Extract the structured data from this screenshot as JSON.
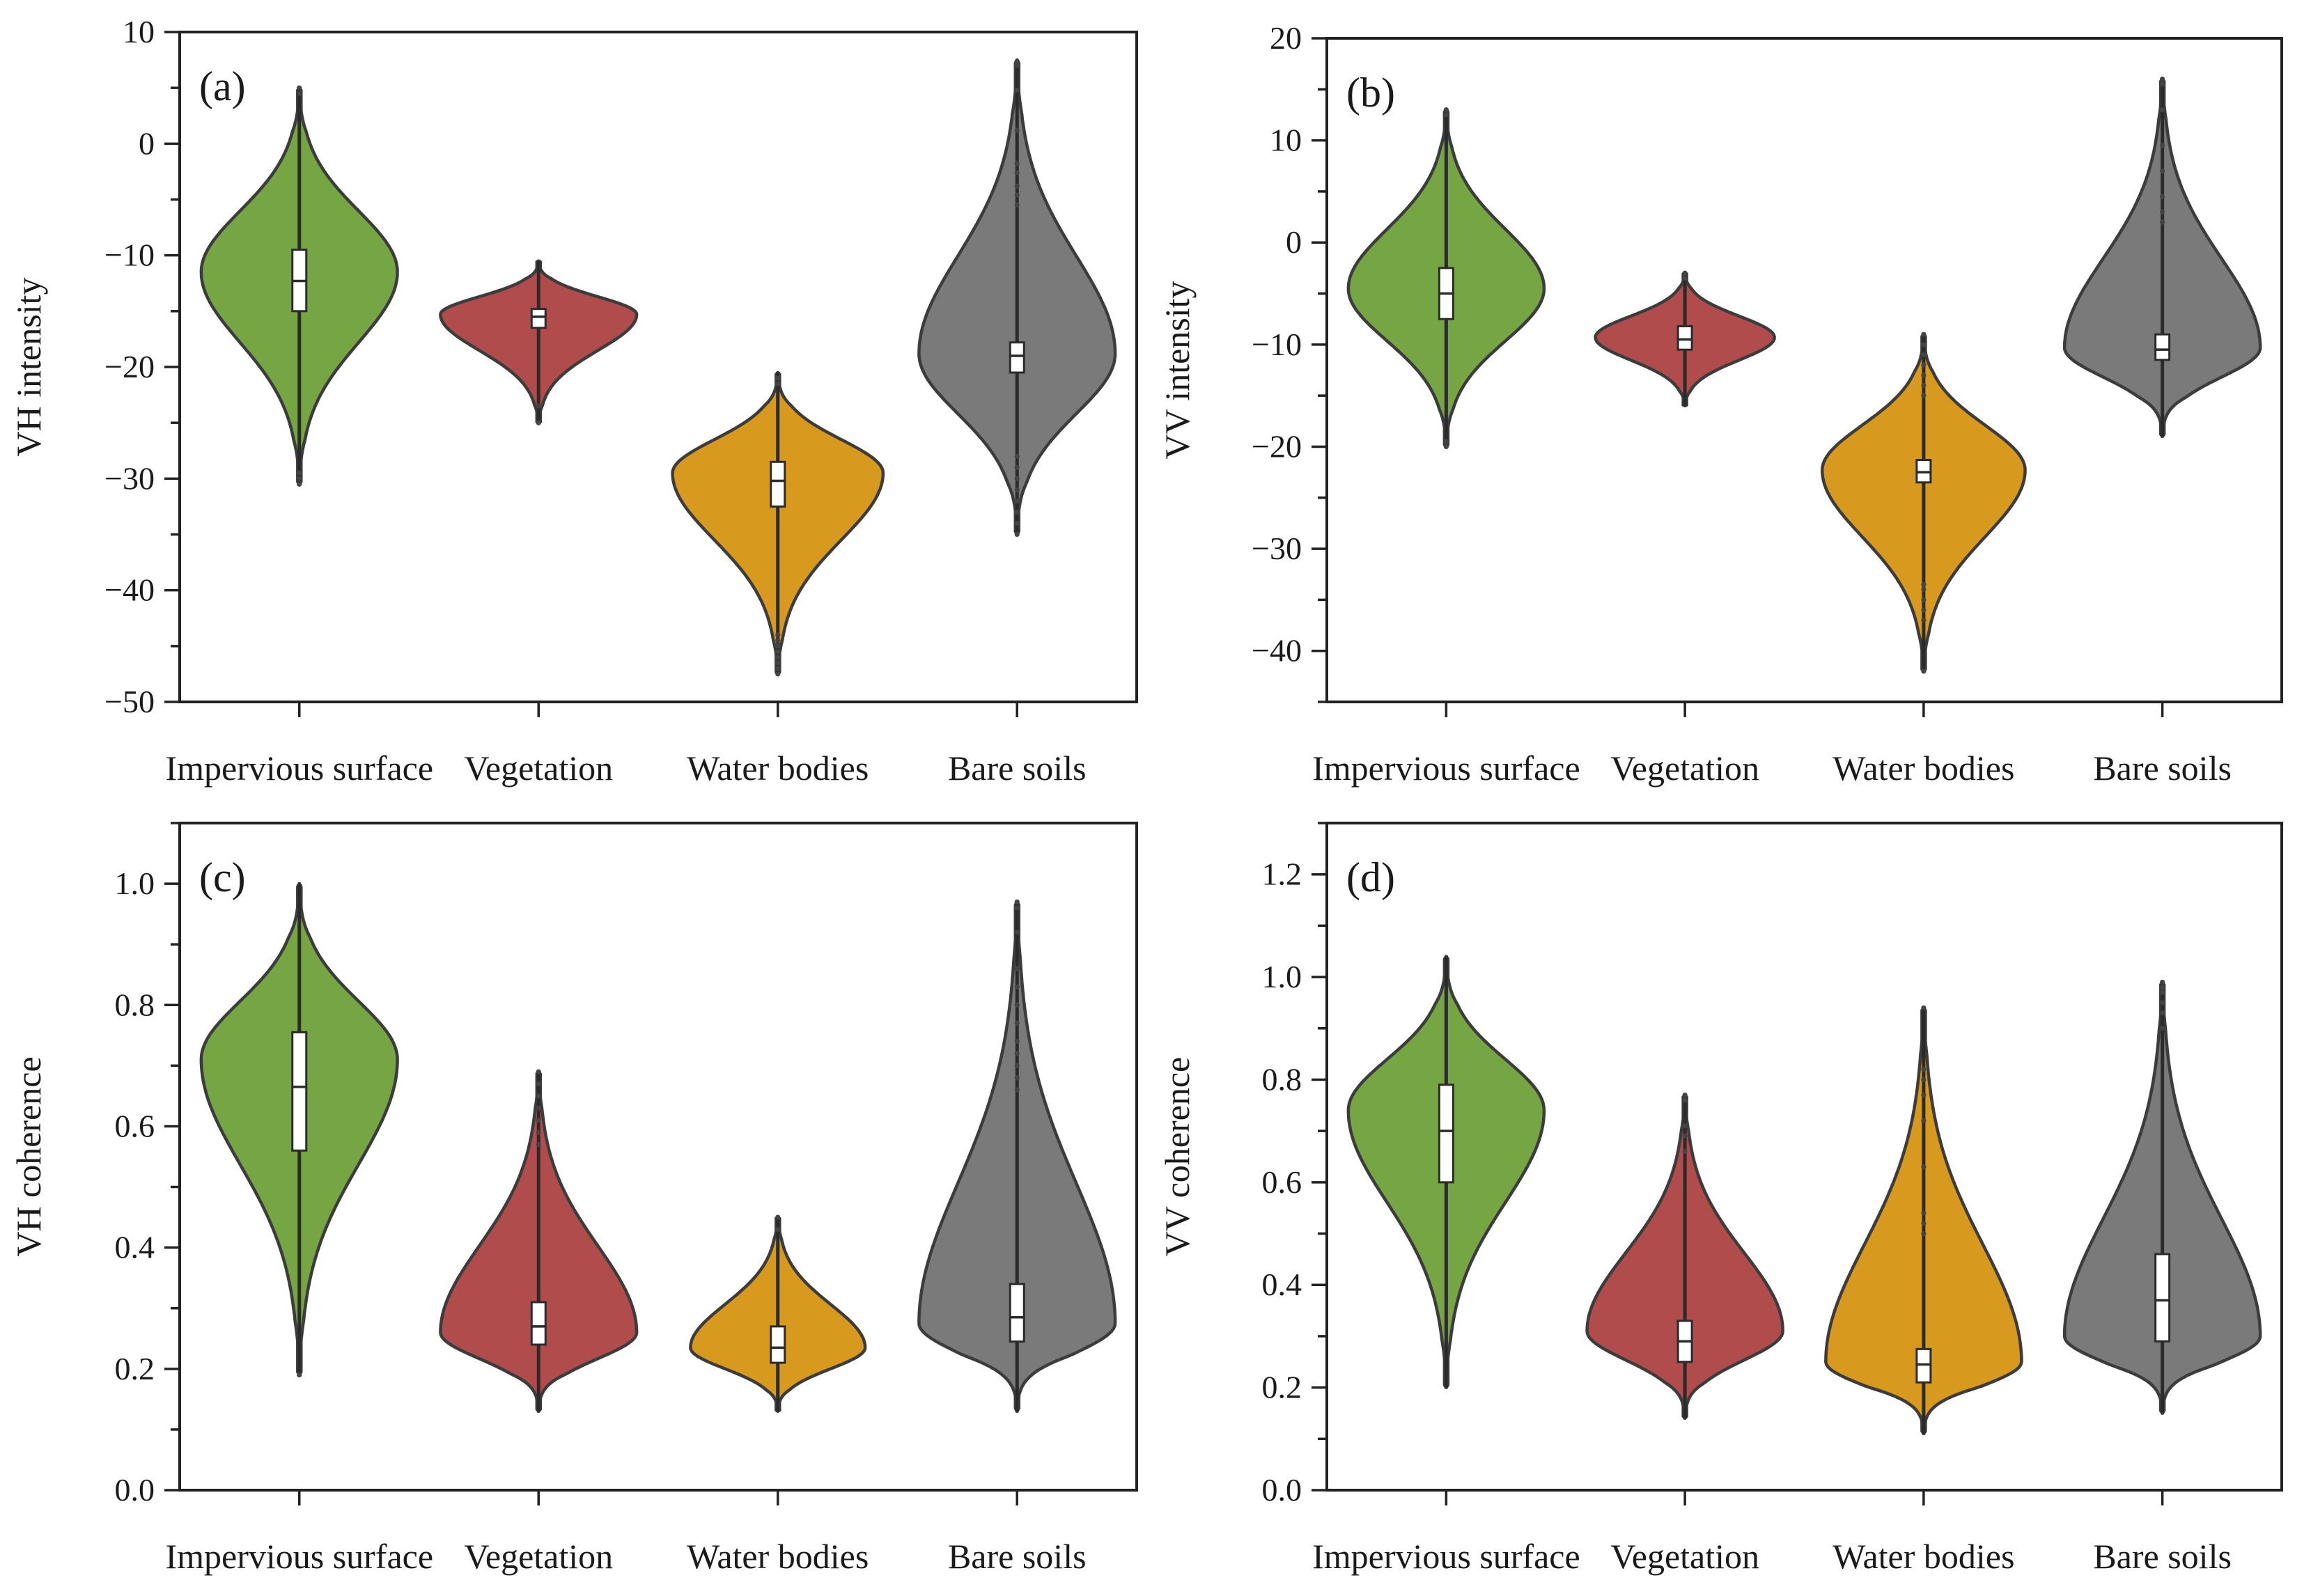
{
  "colors": {
    "impervious": "#76a543",
    "vegetation": "#b04c4c",
    "water": "#d89a1e",
    "bare": "#7a7a7a",
    "outline": "#3c3c3c"
  },
  "chart_data": [
    {
      "id": "a",
      "type": "violin",
      "panel_label": "(a)",
      "ylabel": "VH intensity",
      "ylim": [
        -50,
        10
      ],
      "yticks": [
        10,
        0,
        -10,
        -20,
        -30,
        -40,
        -50
      ],
      "ytick_labels": [
        "10",
        "0",
        "−10",
        "−20",
        "−30",
        "−40",
        "−50"
      ],
      "categories": [
        "Impervious surface",
        "Vegetation",
        "Water bodies",
        "Bare soils"
      ],
      "series": [
        {
          "name": "Impervious surface",
          "min": -30.5,
          "q1": -15,
          "median": -12.3,
          "q3": -9.5,
          "max": 5,
          "mode": -11.5,
          "width": 0.82,
          "outliers": [
            -29.5,
            -30,
            -30.5,
            4.5,
            5
          ]
        },
        {
          "name": "Vegetation",
          "min": -25,
          "q1": -16.5,
          "median": -15.5,
          "q3": -14.8,
          "max": -10.5,
          "mode": -15.3,
          "width": 0.82,
          "outliers": [
            -25,
            -23.5
          ]
        },
        {
          "name": "Water bodies",
          "min": -47.5,
          "q1": -32.5,
          "median": -30.2,
          "q3": -28.5,
          "max": -20.5,
          "mode": -29.5,
          "width": 0.88,
          "outliers": [
            -47.5,
            -47,
            -46.5,
            -46,
            -45.5,
            -45,
            -44.5,
            -44,
            -21,
            -21.5
          ]
        },
        {
          "name": "Bare soils",
          "min": -35,
          "q1": -20.5,
          "median": -19,
          "q3": -17.8,
          "max": 7.5,
          "mode": -18.8,
          "width": 0.82,
          "outliers": [
            -35,
            -34,
            -33,
            -32,
            -31,
            -30,
            -29,
            -28,
            7.3,
            7,
            4.8,
            1.2,
            -1.8,
            -2.6,
            -3.8,
            -4.6,
            -5.5
          ]
        }
      ]
    },
    {
      "id": "b",
      "type": "violin",
      "panel_label": "(b)",
      "ylabel": "VV intensity",
      "ylim": [
        -45,
        20
      ],
      "yticks": [
        20,
        10,
        0,
        -10,
        -20,
        -30,
        -40
      ],
      "ytick_labels": [
        "20",
        "10",
        "0",
        "−10",
        "−20",
        "−30",
        "−40"
      ],
      "categories": [
        "Impervious surface",
        "Vegetation",
        "Water bodies",
        "Bare soils"
      ],
      "series": [
        {
          "name": "Impervious surface",
          "min": -20,
          "q1": -7.5,
          "median": -5,
          "q3": -2.5,
          "max": 13,
          "mode": -4.5,
          "width": 0.82,
          "outliers": [
            -20,
            -19.5,
            12.5,
            13
          ]
        },
        {
          "name": "Vegetation",
          "min": -16,
          "q1": -10.5,
          "median": -9.5,
          "q3": -8.2,
          "max": -3,
          "mode": -9.3,
          "width": 0.75,
          "outliers": [
            -3,
            -3.5
          ]
        },
        {
          "name": "Water bodies",
          "min": -42,
          "q1": -23.5,
          "median": -22.5,
          "q3": -21.3,
          "max": -9,
          "mode": -22.3,
          "width": 0.85,
          "outliers": [
            -42,
            -37,
            -36,
            -35,
            -34,
            -33.5,
            -9,
            -10,
            -11,
            -12,
            -13,
            -14,
            -15
          ]
        },
        {
          "name": "Bare soils",
          "min": -19,
          "q1": -11.5,
          "median": -10.5,
          "q3": -9,
          "max": 16,
          "mode": -10.3,
          "width": 0.82,
          "outliers": [
            16,
            15.5,
            13,
            9.5,
            7,
            4.5,
            3,
            2
          ]
        }
      ]
    },
    {
      "id": "c",
      "type": "violin",
      "panel_label": "(c)",
      "ylabel": "VH coherence",
      "ylim": [
        0.0,
        1.1
      ],
      "yticks": [
        1.0,
        0.8,
        0.6,
        0.4,
        0.2,
        0.0
      ],
      "ytick_labels": [
        "1.0",
        "0.8",
        "0.6",
        "0.4",
        "0.2",
        "0.0"
      ],
      "categories": [
        "Impervious surface",
        "Vegetation",
        "Water bodies",
        "Bare soils"
      ],
      "series": [
        {
          "name": "Impervious surface",
          "min": 0.19,
          "q1": 0.56,
          "median": 0.665,
          "q3": 0.755,
          "max": 1.0,
          "mode": 0.71,
          "width": 0.82,
          "outliers": [
            0.19
          ]
        },
        {
          "name": "Vegetation",
          "min": 0.13,
          "q1": 0.24,
          "median": 0.27,
          "q3": 0.31,
          "max": 0.69,
          "mode": 0.26,
          "width": 0.82,
          "outliers": [
            0.69,
            0.67,
            0.65,
            0.63,
            0.61,
            0.59,
            0.57
          ]
        },
        {
          "name": "Water bodies",
          "min": 0.13,
          "q1": 0.21,
          "median": 0.235,
          "q3": 0.27,
          "max": 0.45,
          "mode": 0.235,
          "width": 0.73,
          "outliers": [
            0.45,
            0.43
          ]
        },
        {
          "name": "Bare soils",
          "min": 0.13,
          "q1": 0.245,
          "median": 0.285,
          "q3": 0.34,
          "max": 0.97,
          "mode": 0.275,
          "width": 0.82,
          "outliers": [
            0.97,
            0.96,
            0.92,
            0.86,
            0.83,
            0.8,
            0.77,
            0.74,
            0.72,
            0.7,
            0.68,
            0.66
          ]
        }
      ]
    },
    {
      "id": "d",
      "type": "violin",
      "panel_label": "(d)",
      "ylabel": "VV coherence",
      "ylim": [
        0.0,
        1.3
      ],
      "yticks": [
        1.2,
        1.0,
        0.8,
        0.6,
        0.4,
        0.2,
        0.0
      ],
      "ytick_labels": [
        "1.2",
        "1.0",
        "0.8",
        "0.6",
        "0.4",
        "0.2",
        "0.0"
      ],
      "categories": [
        "Impervious surface",
        "Vegetation",
        "Water bodies",
        "Bare soils"
      ],
      "series": [
        {
          "name": "Impervious surface",
          "min": 0.2,
          "q1": 0.6,
          "median": 0.7,
          "q3": 0.79,
          "max": 1.04,
          "mode": 0.74,
          "width": 0.82,
          "outliers": []
        },
        {
          "name": "Vegetation",
          "min": 0.14,
          "q1": 0.25,
          "median": 0.29,
          "q3": 0.33,
          "max": 0.77,
          "mode": 0.31,
          "width": 0.82,
          "outliers": [
            0.77,
            0.76,
            0.71,
            0.69,
            0.66
          ]
        },
        {
          "name": "Water bodies",
          "min": 0.11,
          "q1": 0.21,
          "median": 0.245,
          "q3": 0.275,
          "max": 0.94,
          "mode": 0.25,
          "width": 0.82,
          "outliers": [
            0.94,
            0.82,
            0.8,
            0.77,
            0.72,
            0.63,
            0.54,
            0.52,
            0.5
          ]
        },
        {
          "name": "Bare soils",
          "min": 0.15,
          "q1": 0.29,
          "median": 0.37,
          "q3": 0.46,
          "max": 0.99,
          "mode": 0.3,
          "width": 0.82,
          "outliers": [
            0.99,
            0.98,
            0.97,
            0.95,
            0.93,
            0.9
          ]
        }
      ]
    }
  ]
}
